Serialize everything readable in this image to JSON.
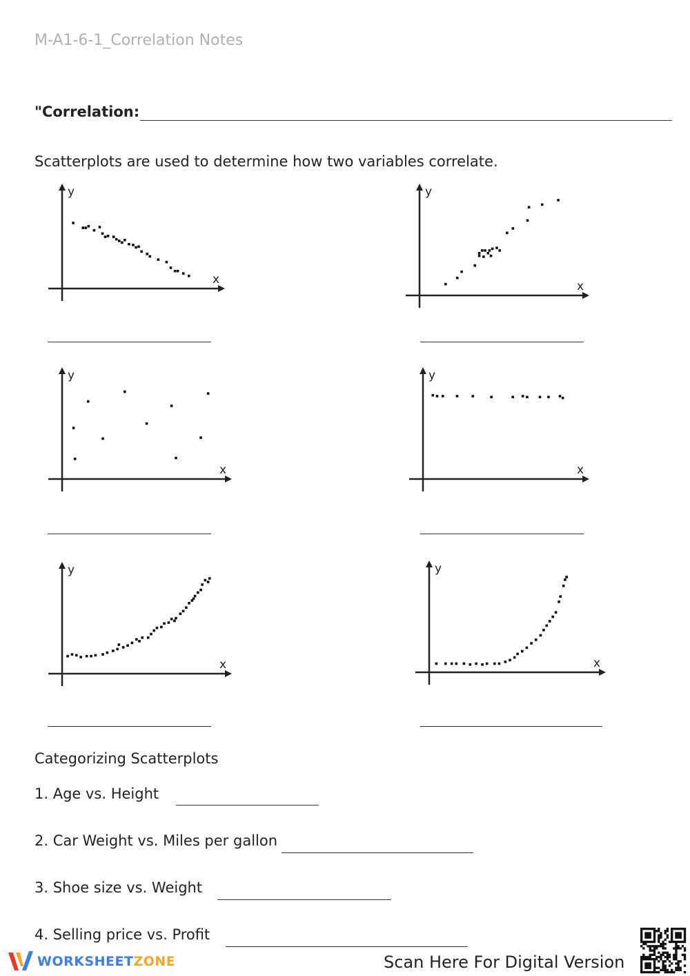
{
  "document": {
    "title": "M-A1-6-1_Correlation Notes",
    "definition_label": "\"Correlation:",
    "intro": "Scatterplots are used to determine how two variables correlate."
  },
  "plots": [
    {
      "x_label": "x",
      "y_label": "y",
      "points": [
        [
          0.05,
          0.72
        ],
        [
          0.12,
          0.66
        ],
        [
          0.14,
          0.66
        ],
        [
          0.16,
          0.68
        ],
        [
          0.2,
          0.63
        ],
        [
          0.26,
          0.59
        ],
        [
          0.3,
          0.56
        ],
        [
          0.34,
          0.55
        ],
        [
          0.38,
          0.5
        ],
        [
          0.4,
          0.48
        ],
        [
          0.42,
          0.51
        ],
        [
          0.45,
          0.46
        ],
        [
          0.48,
          0.45
        ],
        [
          0.5,
          0.42
        ],
        [
          0.52,
          0.43
        ],
        [
          0.54,
          0.37
        ],
        [
          0.58,
          0.34
        ],
        [
          0.6,
          0.31
        ],
        [
          0.66,
          0.27
        ],
        [
          0.72,
          0.24
        ],
        [
          0.75,
          0.17
        ],
        [
          0.78,
          0.13
        ],
        [
          0.8,
          0.13
        ],
        [
          0.84,
          0.1
        ],
        [
          0.88,
          0.07
        ],
        [
          0.24,
          0.67
        ],
        [
          0.28,
          0.55
        ],
        [
          0.36,
          0.52
        ]
      ]
    },
    {
      "x_label": "x",
      "y_label": "y",
      "points": [
        [
          0.15,
          0.05
        ],
        [
          0.23,
          0.12
        ],
        [
          0.26,
          0.19
        ],
        [
          0.35,
          0.26
        ],
        [
          0.38,
          0.4
        ],
        [
          0.38,
          0.37
        ],
        [
          0.4,
          0.43
        ],
        [
          0.41,
          0.36
        ],
        [
          0.42,
          0.43
        ],
        [
          0.44,
          0.4
        ],
        [
          0.45,
          0.43
        ],
        [
          0.46,
          0.37
        ],
        [
          0.47,
          0.45
        ],
        [
          0.5,
          0.46
        ],
        [
          0.52,
          0.43
        ],
        [
          0.57,
          0.63
        ],
        [
          0.61,
          0.68
        ],
        [
          0.71,
          0.77
        ],
        [
          0.72,
          0.92
        ],
        [
          0.81,
          0.95
        ],
        [
          0.92,
          1.0
        ]
      ]
    },
    {
      "x_label": "x",
      "y_label": "y",
      "points": [
        [
          0.05,
          0.5
        ],
        [
          0.06,
          0.15
        ],
        [
          0.15,
          0.8
        ],
        [
          0.25,
          0.38
        ],
        [
          0.4,
          0.91
        ],
        [
          0.55,
          0.55
        ],
        [
          0.72,
          0.75
        ],
        [
          0.75,
          0.16
        ],
        [
          0.92,
          0.39
        ],
        [
          0.97,
          0.89
        ]
      ]
    },
    {
      "x_label": "x",
      "y_label": "y",
      "points": [
        [
          0.04,
          0.87
        ],
        [
          0.07,
          0.86
        ],
        [
          0.11,
          0.86
        ],
        [
          0.21,
          0.86
        ],
        [
          0.32,
          0.86
        ],
        [
          0.45,
          0.85
        ],
        [
          0.6,
          0.85
        ],
        [
          0.67,
          0.86
        ],
        [
          0.7,
          0.85
        ],
        [
          0.79,
          0.85
        ],
        [
          0.85,
          0.85
        ],
        [
          0.93,
          0.86
        ],
        [
          0.95,
          0.84
        ]
      ]
    },
    {
      "x_label": "x",
      "y_label": "y",
      "points": [
        [
          0.01,
          0.12
        ],
        [
          0.04,
          0.14
        ],
        [
          0.07,
          0.13
        ],
        [
          0.1,
          0.11
        ],
        [
          0.14,
          0.12
        ],
        [
          0.17,
          0.12
        ],
        [
          0.2,
          0.13
        ],
        [
          0.25,
          0.14
        ],
        [
          0.28,
          0.16
        ],
        [
          0.32,
          0.18
        ],
        [
          0.35,
          0.2
        ],
        [
          0.39,
          0.22
        ],
        [
          0.42,
          0.24
        ],
        [
          0.45,
          0.27
        ],
        [
          0.5,
          0.29
        ],
        [
          0.52,
          0.33
        ],
        [
          0.56,
          0.33
        ],
        [
          0.58,
          0.37
        ],
        [
          0.6,
          0.41
        ],
        [
          0.65,
          0.45
        ],
        [
          0.67,
          0.49
        ],
        [
          0.7,
          0.5
        ],
        [
          0.72,
          0.54
        ],
        [
          0.75,
          0.55
        ],
        [
          0.78,
          0.6
        ],
        [
          0.8,
          0.63
        ],
        [
          0.82,
          0.67
        ],
        [
          0.84,
          0.72
        ],
        [
          0.86,
          0.75
        ],
        [
          0.88,
          0.8
        ],
        [
          0.9,
          0.84
        ],
        [
          0.92,
          0.87
        ],
        [
          0.93,
          0.93
        ],
        [
          0.95,
          0.98
        ],
        [
          0.97,
          0.96
        ],
        [
          0.98,
          1.0
        ],
        [
          0.36,
          0.25
        ],
        [
          0.48,
          0.31
        ],
        [
          0.62,
          0.44
        ],
        [
          0.74,
          0.52
        ],
        [
          0.87,
          0.77
        ]
      ]
    },
    {
      "x_label": "x",
      "y_label": "y",
      "points": [
        [
          0.02,
          0.02
        ],
        [
          0.08,
          0.02
        ],
        [
          0.12,
          0.02
        ],
        [
          0.15,
          0.02
        ],
        [
          0.2,
          0.02
        ],
        [
          0.24,
          0.01
        ],
        [
          0.28,
          0.02
        ],
        [
          0.32,
          0.01
        ],
        [
          0.35,
          0.02
        ],
        [
          0.4,
          0.02
        ],
        [
          0.43,
          0.02
        ],
        [
          0.47,
          0.04
        ],
        [
          0.5,
          0.06
        ],
        [
          0.53,
          0.09
        ],
        [
          0.55,
          0.13
        ],
        [
          0.58,
          0.16
        ],
        [
          0.61,
          0.2
        ],
        [
          0.64,
          0.25
        ],
        [
          0.67,
          0.29
        ],
        [
          0.7,
          0.34
        ],
        [
          0.72,
          0.4
        ],
        [
          0.74,
          0.45
        ],
        [
          0.76,
          0.5
        ],
        [
          0.78,
          0.55
        ],
        [
          0.8,
          0.6
        ],
        [
          0.82,
          0.72
        ],
        [
          0.83,
          0.78
        ],
        [
          0.85,
          0.9
        ],
        [
          0.86,
          0.97
        ],
        [
          0.87,
          1.0
        ]
      ]
    }
  ],
  "section": {
    "title": "Categorizing Scatterplots",
    "questions": [
      "1. Age vs. Height",
      "2. Car Weight vs. Miles per gallon",
      "3. Shoe size vs. Weight",
      "4. Selling price vs. Profit"
    ]
  },
  "footer": {
    "brand_part1": "WORKSHEET",
    "brand_part2": "ZONE",
    "scan_text": "Scan Here For Digital Version"
  },
  "colors": {
    "brand_blue": "#3b7fe0",
    "brand_orange": "#f5a623",
    "title_gray": "#b0b0b0"
  },
  "icons": {
    "logo": "worksheetzone-w-icon",
    "qr": "qr-code-icon"
  }
}
